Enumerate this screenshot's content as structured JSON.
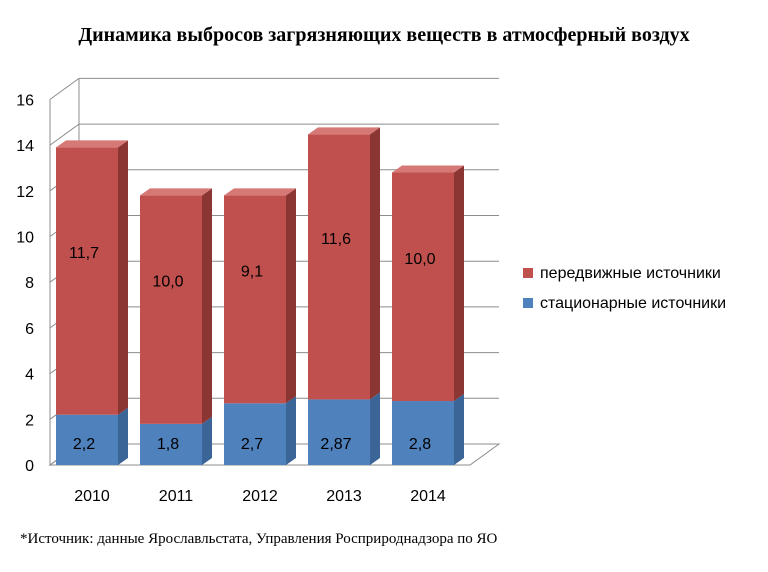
{
  "chart_data": {
    "type": "bar",
    "stacked": true,
    "title": "Динамика выбросов загрязняющих веществ в атмосферный воздух",
    "categories": [
      "2010",
      "2011",
      "2012",
      "2013",
      "2014"
    ],
    "series": [
      {
        "name": "стационарные источники",
        "values": [
          2.2,
          1.8,
          2.7,
          2.87,
          2.8
        ],
        "labels": [
          "2,2",
          "1,8",
          "2,7",
          "2,87",
          "2,8"
        ],
        "color": "#4f81bd"
      },
      {
        "name": "передвижные источники",
        "values": [
          11.7,
          10.0,
          9.1,
          11.6,
          10.0
        ],
        "labels": [
          "11,7",
          "10,0",
          "9,1",
          "11,6",
          "10,0"
        ],
        "color": "#c0504d"
      }
    ],
    "ylim": [
      0,
      16
    ],
    "yticks": [
      "0",
      "2",
      "4",
      "6",
      "8",
      "10",
      "12",
      "14",
      "16"
    ],
    "grid": true,
    "legend": "right"
  },
  "footnote": "*Источник: данные Ярославльстата, Управления Росприроднадзора по ЯО"
}
